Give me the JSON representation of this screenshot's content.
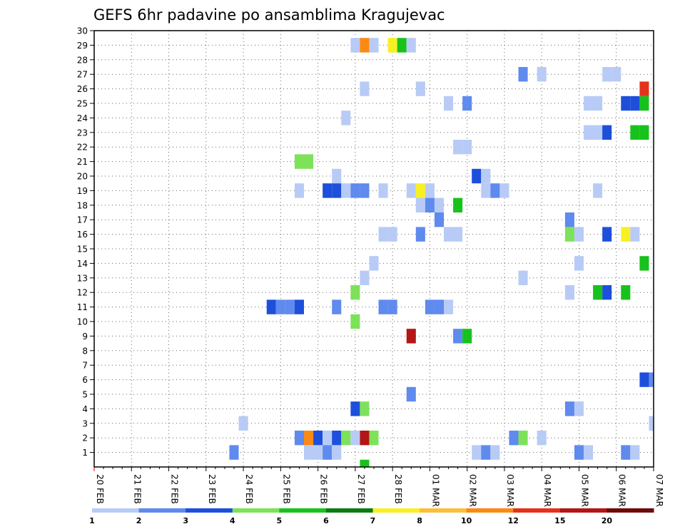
{
  "chart_data": {
    "type": "heatmap",
    "title": "GEFS 6hr padavine po ansamblima Kragujevac",
    "members": [
      1,
      2,
      3,
      4,
      5,
      6,
      7,
      8,
      9,
      10,
      11,
      12,
      13,
      14,
      15,
      16,
      17,
      18,
      19,
      20,
      21,
      22,
      23,
      24,
      25,
      26,
      27,
      28,
      29,
      30
    ],
    "x_start_label": "20 FEB",
    "x_end_label": "07 MAR",
    "x_step": "6h",
    "x_tick_labels": [
      "20 FEB",
      "21 FEB",
      "22 FEB",
      "23 FEB",
      "24 FEB",
      "25 FEB",
      "26 FEB",
      "27 FEB",
      "28 FEB",
      "01 MAR",
      "02 MAR",
      "03 MAR",
      "04 MAR",
      "05 MAR",
      "06 MAR",
      "07 MAR"
    ],
    "color_levels": [
      1,
      2,
      3,
      4,
      5,
      6,
      7,
      8,
      10,
      12,
      15,
      20
    ],
    "colors": [
      "#b8cbf6",
      "#5f8aee",
      "#1e4fdb",
      "#7de25a",
      "#18c21c",
      "#0a7d10",
      "#f8f022",
      "#fcbe3a",
      "#fb8a15",
      "#e4321b",
      "#b21616",
      "#6e0a0a"
    ],
    "grid": true,
    "cells": [
      {
        "m": 29,
        "s": [
          [
            28,
            "#b8cbf6"
          ],
          [
            29,
            "#fb8a15"
          ],
          [
            30,
            "#b8cbf6"
          ],
          [
            32,
            "#f8f022"
          ],
          [
            33,
            "#18c21c"
          ],
          [
            34,
            "#b8cbf6"
          ]
        ]
      },
      {
        "m": 27,
        "s": [
          [
            46,
            "#5f8aee"
          ],
          [
            48,
            "#b8cbf6"
          ],
          [
            55,
            "#b8cbf6"
          ],
          [
            56,
            "#b8cbf6"
          ]
        ]
      },
      {
        "m": 26,
        "s": [
          [
            29,
            "#b8cbf6"
          ],
          [
            35,
            "#b8cbf6"
          ],
          [
            59,
            "#e4321b"
          ]
        ]
      },
      {
        "m": 25,
        "s": [
          [
            38,
            "#b8cbf6"
          ],
          [
            40,
            "#5f8aee"
          ],
          [
            53,
            "#b8cbf6"
          ],
          [
            54,
            "#b8cbf6"
          ],
          [
            57,
            "#1e4fdb"
          ],
          [
            58,
            "#1e4fdb"
          ],
          [
            59,
            "#18c21c"
          ]
        ]
      },
      {
        "m": 24,
        "s": [
          [
            27,
            "#b8cbf6"
          ]
        ]
      },
      {
        "m": 23,
        "s": [
          [
            53,
            "#b8cbf6"
          ],
          [
            54,
            "#b8cbf6"
          ],
          [
            55,
            "#1e4fdb"
          ],
          [
            58,
            "#18c21c"
          ],
          [
            59,
            "#18c21c"
          ]
        ]
      },
      {
        "m": 22,
        "s": [
          [
            39,
            "#b8cbf6"
          ],
          [
            40,
            "#b8cbf6"
          ]
        ]
      },
      {
        "m": 21,
        "s": [
          [
            22,
            "#7de25a"
          ],
          [
            23,
            "#7de25a"
          ]
        ]
      },
      {
        "m": 20,
        "s": [
          [
            26,
            "#b8cbf6"
          ],
          [
            41,
            "#1e4fdb"
          ],
          [
            42,
            "#b8cbf6"
          ]
        ]
      },
      {
        "m": 19,
        "s": [
          [
            22,
            "#b8cbf6"
          ],
          [
            25,
            "#1e4fdb"
          ],
          [
            26,
            "#1e4fdb"
          ],
          [
            27,
            "#b8cbf6"
          ],
          [
            28,
            "#5f8aee"
          ],
          [
            29,
            "#5f8aee"
          ],
          [
            31,
            "#b8cbf6"
          ],
          [
            34,
            "#b8cbf6"
          ],
          [
            35,
            "#f8f022"
          ],
          [
            36,
            "#b8cbf6"
          ],
          [
            42,
            "#b8cbf6"
          ],
          [
            43,
            "#5f8aee"
          ],
          [
            44,
            "#b8cbf6"
          ],
          [
            54,
            "#b8cbf6"
          ]
        ]
      },
      {
        "m": 18,
        "s": [
          [
            35,
            "#b8cbf6"
          ],
          [
            36,
            "#5f8aee"
          ],
          [
            37,
            "#b8cbf6"
          ],
          [
            39,
            "#18c21c"
          ]
        ]
      },
      {
        "m": 17,
        "s": [
          [
            37,
            "#5f8aee"
          ],
          [
            51,
            "#5f8aee"
          ]
        ]
      },
      {
        "m": 16,
        "s": [
          [
            31,
            "#b8cbf6"
          ],
          [
            32,
            "#b8cbf6"
          ],
          [
            35,
            "#5f8aee"
          ],
          [
            38,
            "#b8cbf6"
          ],
          [
            39,
            "#b8cbf6"
          ],
          [
            51,
            "#7de25a"
          ],
          [
            52,
            "#b8cbf6"
          ],
          [
            55,
            "#1e4fdb"
          ],
          [
            57,
            "#f8f022"
          ],
          [
            58,
            "#b8cbf6"
          ]
        ]
      },
      {
        "m": 14,
        "s": [
          [
            30,
            "#b8cbf6"
          ],
          [
            52,
            "#b8cbf6"
          ],
          [
            59,
            "#18c21c"
          ]
        ]
      },
      {
        "m": 13,
        "s": [
          [
            29,
            "#b8cbf6"
          ],
          [
            46,
            "#b8cbf6"
          ]
        ]
      },
      {
        "m": 12,
        "s": [
          [
            28,
            "#7de25a"
          ],
          [
            51,
            "#b8cbf6"
          ],
          [
            54,
            "#18c21c"
          ],
          [
            55,
            "#1e4fdb"
          ],
          [
            57,
            "#18c21c"
          ]
        ]
      },
      {
        "m": 11,
        "s": [
          [
            19,
            "#1e4fdb"
          ],
          [
            20,
            "#5f8aee"
          ],
          [
            21,
            "#5f8aee"
          ],
          [
            22,
            "#1e4fdb"
          ],
          [
            26,
            "#5f8aee"
          ],
          [
            31,
            "#5f8aee"
          ],
          [
            32,
            "#5f8aee"
          ],
          [
            36,
            "#5f8aee"
          ],
          [
            37,
            "#5f8aee"
          ],
          [
            38,
            "#b8cbf6"
          ]
        ]
      },
      {
        "m": 10,
        "s": [
          [
            28,
            "#7de25a"
          ]
        ]
      },
      {
        "m": 9,
        "s": [
          [
            34,
            "#b21616"
          ],
          [
            39,
            "#5f8aee"
          ],
          [
            40,
            "#18c21c"
          ]
        ]
      },
      {
        "m": 6,
        "s": [
          [
            59,
            "#1e4fdb"
          ],
          [
            60,
            "#5f8aee"
          ]
        ]
      },
      {
        "m": 5,
        "s": [
          [
            34,
            "#5f8aee"
          ]
        ]
      },
      {
        "m": 4,
        "s": [
          [
            28,
            "#1e4fdb"
          ],
          [
            29,
            "#7de25a"
          ],
          [
            51,
            "#5f8aee"
          ],
          [
            52,
            "#b8cbf6"
          ]
        ]
      },
      {
        "m": 3,
        "s": [
          [
            16,
            "#b8cbf6"
          ],
          [
            60,
            "#b8cbf6"
          ]
        ]
      },
      {
        "m": 2,
        "s": [
          [
            22,
            "#5f8aee"
          ],
          [
            23,
            "#fb8a15"
          ],
          [
            24,
            "#1e4fdb"
          ],
          [
            25,
            "#b8cbf6"
          ],
          [
            26,
            "#1e4fdb"
          ],
          [
            27,
            "#7de25a"
          ],
          [
            28,
            "#b8cbf6"
          ],
          [
            29,
            "#b21616"
          ],
          [
            30,
            "#7de25a"
          ],
          [
            45,
            "#5f8aee"
          ],
          [
            46,
            "#7de25a"
          ],
          [
            48,
            "#b8cbf6"
          ]
        ]
      },
      {
        "m": 1,
        "s": [
          [
            15,
            "#5f8aee"
          ],
          [
            23,
            "#b8cbf6"
          ],
          [
            24,
            "#b8cbf6"
          ],
          [
            25,
            "#5f8aee"
          ],
          [
            26,
            "#b8cbf6"
          ],
          [
            41,
            "#b8cbf6"
          ],
          [
            42,
            "#5f8aee"
          ],
          [
            43,
            "#b8cbf6"
          ],
          [
            52,
            "#5f8aee"
          ],
          [
            53,
            "#b8cbf6"
          ],
          [
            57,
            "#5f8aee"
          ],
          [
            58,
            "#b8cbf6"
          ]
        ]
      },
      {
        "m": 0,
        "s": [
          [
            29,
            "#18c21c"
          ]
        ]
      }
    ]
  }
}
